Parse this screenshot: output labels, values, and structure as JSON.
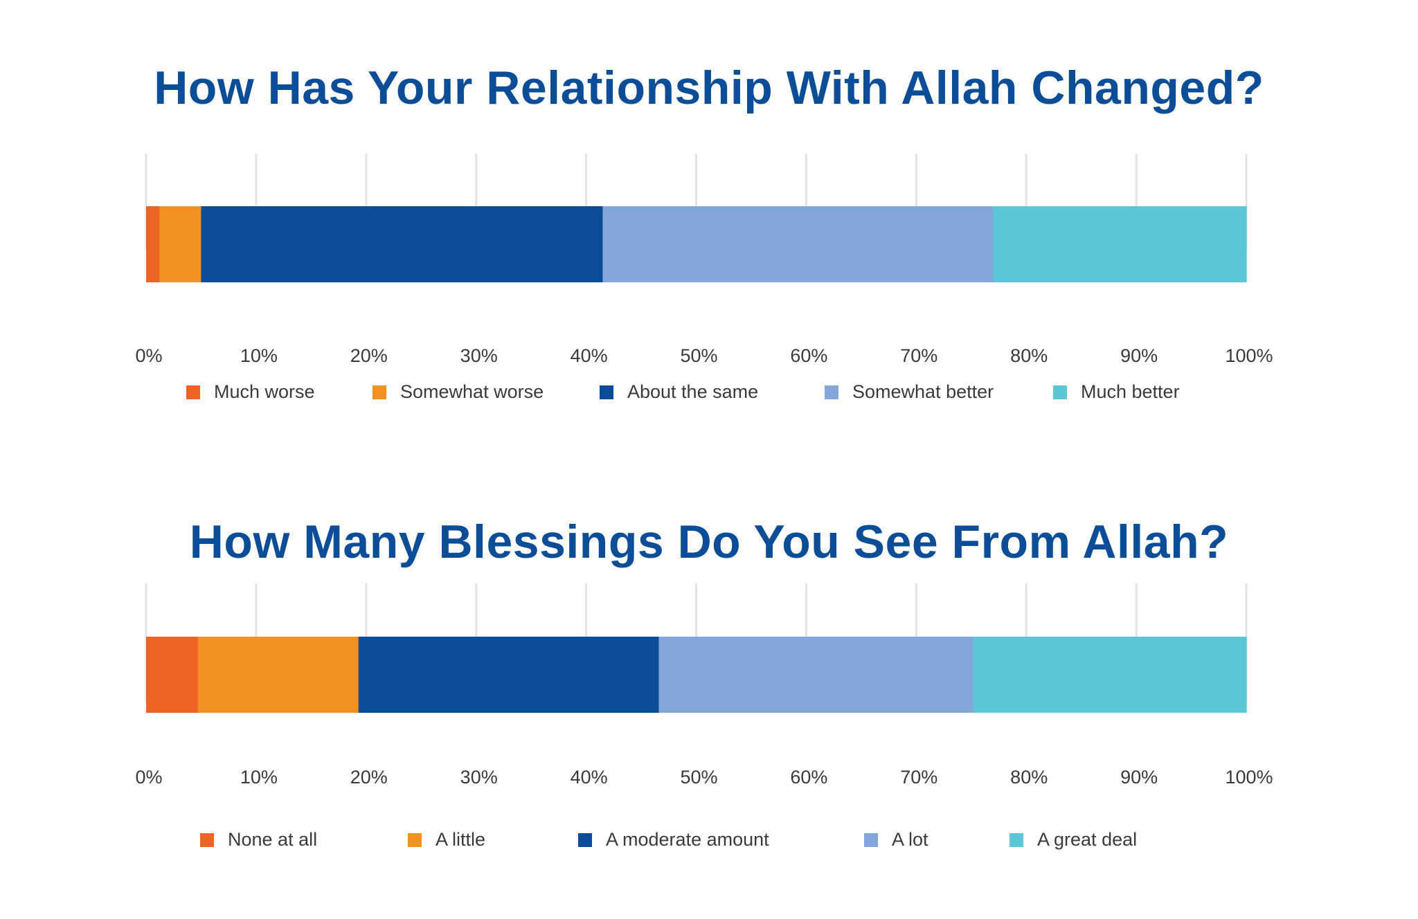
{
  "chart_data": [
    {
      "type": "bar",
      "orientation": "horizontal",
      "stacked": true,
      "title": "How Has Your Relationship With Allah Changed?",
      "xlim": [
        0,
        100
      ],
      "x_tick_labels": [
        "0%",
        "10%",
        "20%",
        "30%",
        "40%",
        "50%",
        "60%",
        "70%",
        "80%",
        "90%",
        "100%"
      ],
      "grid": "vertical",
      "legend_position": "bottom",
      "series": [
        {
          "name": "Much worse",
          "values": [
            1.2
          ],
          "color": "#ef6424"
        },
        {
          "name": "Somewhat worse",
          "values": [
            3.8
          ],
          "color": "#f29022"
        },
        {
          "name": "About the same",
          "values": [
            36.5
          ],
          "color": "#0c4d98"
        },
        {
          "name": "Somewhat better",
          "values": [
            35.5
          ],
          "color": "#82a6d8"
        },
        {
          "name": "Much better",
          "values": [
            23.0
          ],
          "color": "#5bc6d6"
        }
      ]
    },
    {
      "type": "bar",
      "orientation": "horizontal",
      "stacked": true,
      "title": "How Many Blessings Do You See From Allah?",
      "xlim": [
        0,
        100
      ],
      "x_tick_labels": [
        "0%",
        "10%",
        "20%",
        "30%",
        "40%",
        "50%",
        "60%",
        "70%",
        "80%",
        "90%",
        "100%"
      ],
      "grid": "vertical",
      "legend_position": "bottom",
      "series": [
        {
          "name": "None at all",
          "values": [
            4.7
          ],
          "color": "#ef6424"
        },
        {
          "name": "A little",
          "values": [
            14.6
          ],
          "color": "#f29022"
        },
        {
          "name": "A moderate amount",
          "values": [
            27.3
          ],
          "color": "#0c4d98"
        },
        {
          "name": "A lot",
          "values": [
            28.6
          ],
          "color": "#82a6d8"
        },
        {
          "name": "A great deal",
          "values": [
            24.8
          ],
          "color": "#5bc6d6"
        }
      ]
    }
  ]
}
